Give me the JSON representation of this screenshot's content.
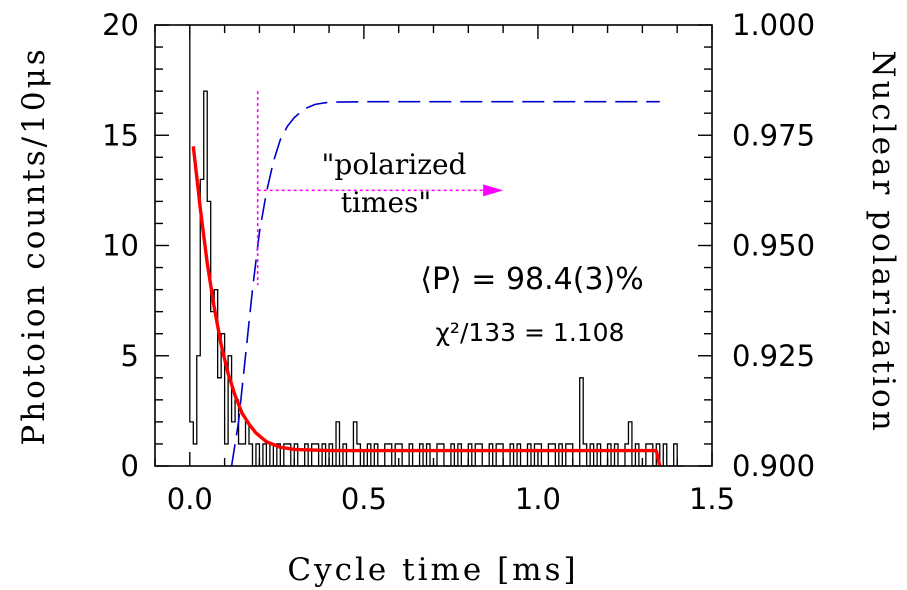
{
  "chart_data": {
    "type": "line",
    "xlabel": "Cycle time [ms]",
    "ylabel": "Photoion counts/10μs",
    "y2label": "Nuclear polarization",
    "xlim": [
      -0.1,
      1.5
    ],
    "ylim": [
      0,
      20
    ],
    "y2lim": [
      0.9,
      1.0
    ],
    "x_ticks": [
      "0.0",
      "0.5",
      "1.0",
      "1.5"
    ],
    "y_ticks": [
      "0",
      "5",
      "10",
      "15",
      "20"
    ],
    "y2_ticks": [
      "0.900",
      "0.925",
      "0.950",
      "0.975",
      "1.000"
    ],
    "grid": false,
    "series": [
      {
        "kind": "histogram",
        "color": "#000000",
        "bin_width": 0.01,
        "x_start": -0.01,
        "values": [
          20,
          2,
          1,
          5,
          13,
          17,
          12,
          7,
          8,
          4,
          6,
          1,
          5,
          2,
          3,
          1,
          1,
          2,
          1,
          0,
          1,
          0,
          1,
          0,
          1,
          0,
          1,
          0,
          1,
          1,
          0,
          1,
          0,
          0,
          1,
          0,
          1,
          1,
          0,
          1,
          0,
          1,
          0,
          2,
          0,
          1,
          0,
          0,
          2,
          1,
          0,
          0,
          1,
          0,
          1,
          0,
          0,
          1,
          1,
          0,
          1,
          1,
          0,
          0,
          1,
          0,
          0,
          1,
          0,
          1,
          0,
          0,
          1,
          1,
          0,
          0,
          1,
          0,
          1,
          0,
          0,
          1,
          0,
          1,
          1,
          0,
          0,
          1,
          0,
          1,
          1,
          0,
          0,
          1,
          0,
          1,
          0,
          0,
          1,
          0,
          1,
          1,
          0,
          0,
          1,
          1,
          0,
          1,
          0,
          1,
          1,
          0,
          0,
          4,
          1,
          0,
          1,
          0,
          1,
          0,
          0,
          1,
          0,
          1,
          0,
          0,
          1,
          2,
          0,
          1,
          0,
          0,
          1,
          1,
          0,
          1,
          0,
          1,
          0,
          0,
          1,
          0,
          0
        ]
      },
      {
        "kind": "fit",
        "color": "#ff0000",
        "model": "exponential decay",
        "x": [
          0.01,
          0.03,
          0.05,
          0.07,
          0.09,
          0.11,
          0.13,
          0.15,
          0.17,
          0.19,
          0.22,
          0.26,
          0.3,
          0.4,
          0.6,
          0.8,
          1.0,
          1.2,
          1.34,
          1.35
        ],
        "y": [
          14.5,
          11.7,
          9.2,
          7.2,
          5.5,
          4.2,
          3.2,
          2.4,
          1.9,
          1.5,
          1.1,
          0.85,
          0.75,
          0.7,
          0.7,
          0.7,
          0.7,
          0.7,
          0.7,
          0.0
        ]
      },
      {
        "kind": "polarization",
        "axis": "right",
        "color": "#0000cc",
        "dash": "dashed",
        "x": [
          0.12,
          0.14,
          0.16,
          0.18,
          0.2,
          0.22,
          0.24,
          0.26,
          0.28,
          0.3,
          0.33,
          0.36,
          0.4,
          0.5,
          0.7,
          1.0,
          1.35
        ],
        "y": [
          0.9,
          0.91,
          0.925,
          0.94,
          0.953,
          0.962,
          0.969,
          0.974,
          0.977,
          0.979,
          0.981,
          0.982,
          0.9825,
          0.9826,
          0.9826,
          0.9826,
          0.9826
        ]
      }
    ],
    "annotations": {
      "polarized_label_1": "\"polarized",
      "polarized_label_2": "times\"",
      "mean_polarization": "⟨P⟩ = 98.4(3)%",
      "chi_squared": "χ²/133 = 1.108",
      "marker_x": 0.195,
      "arrow_end_x": 0.9,
      "arrow_y": 12.5,
      "marker_ylim": [
        8.2,
        17
      ]
    }
  }
}
